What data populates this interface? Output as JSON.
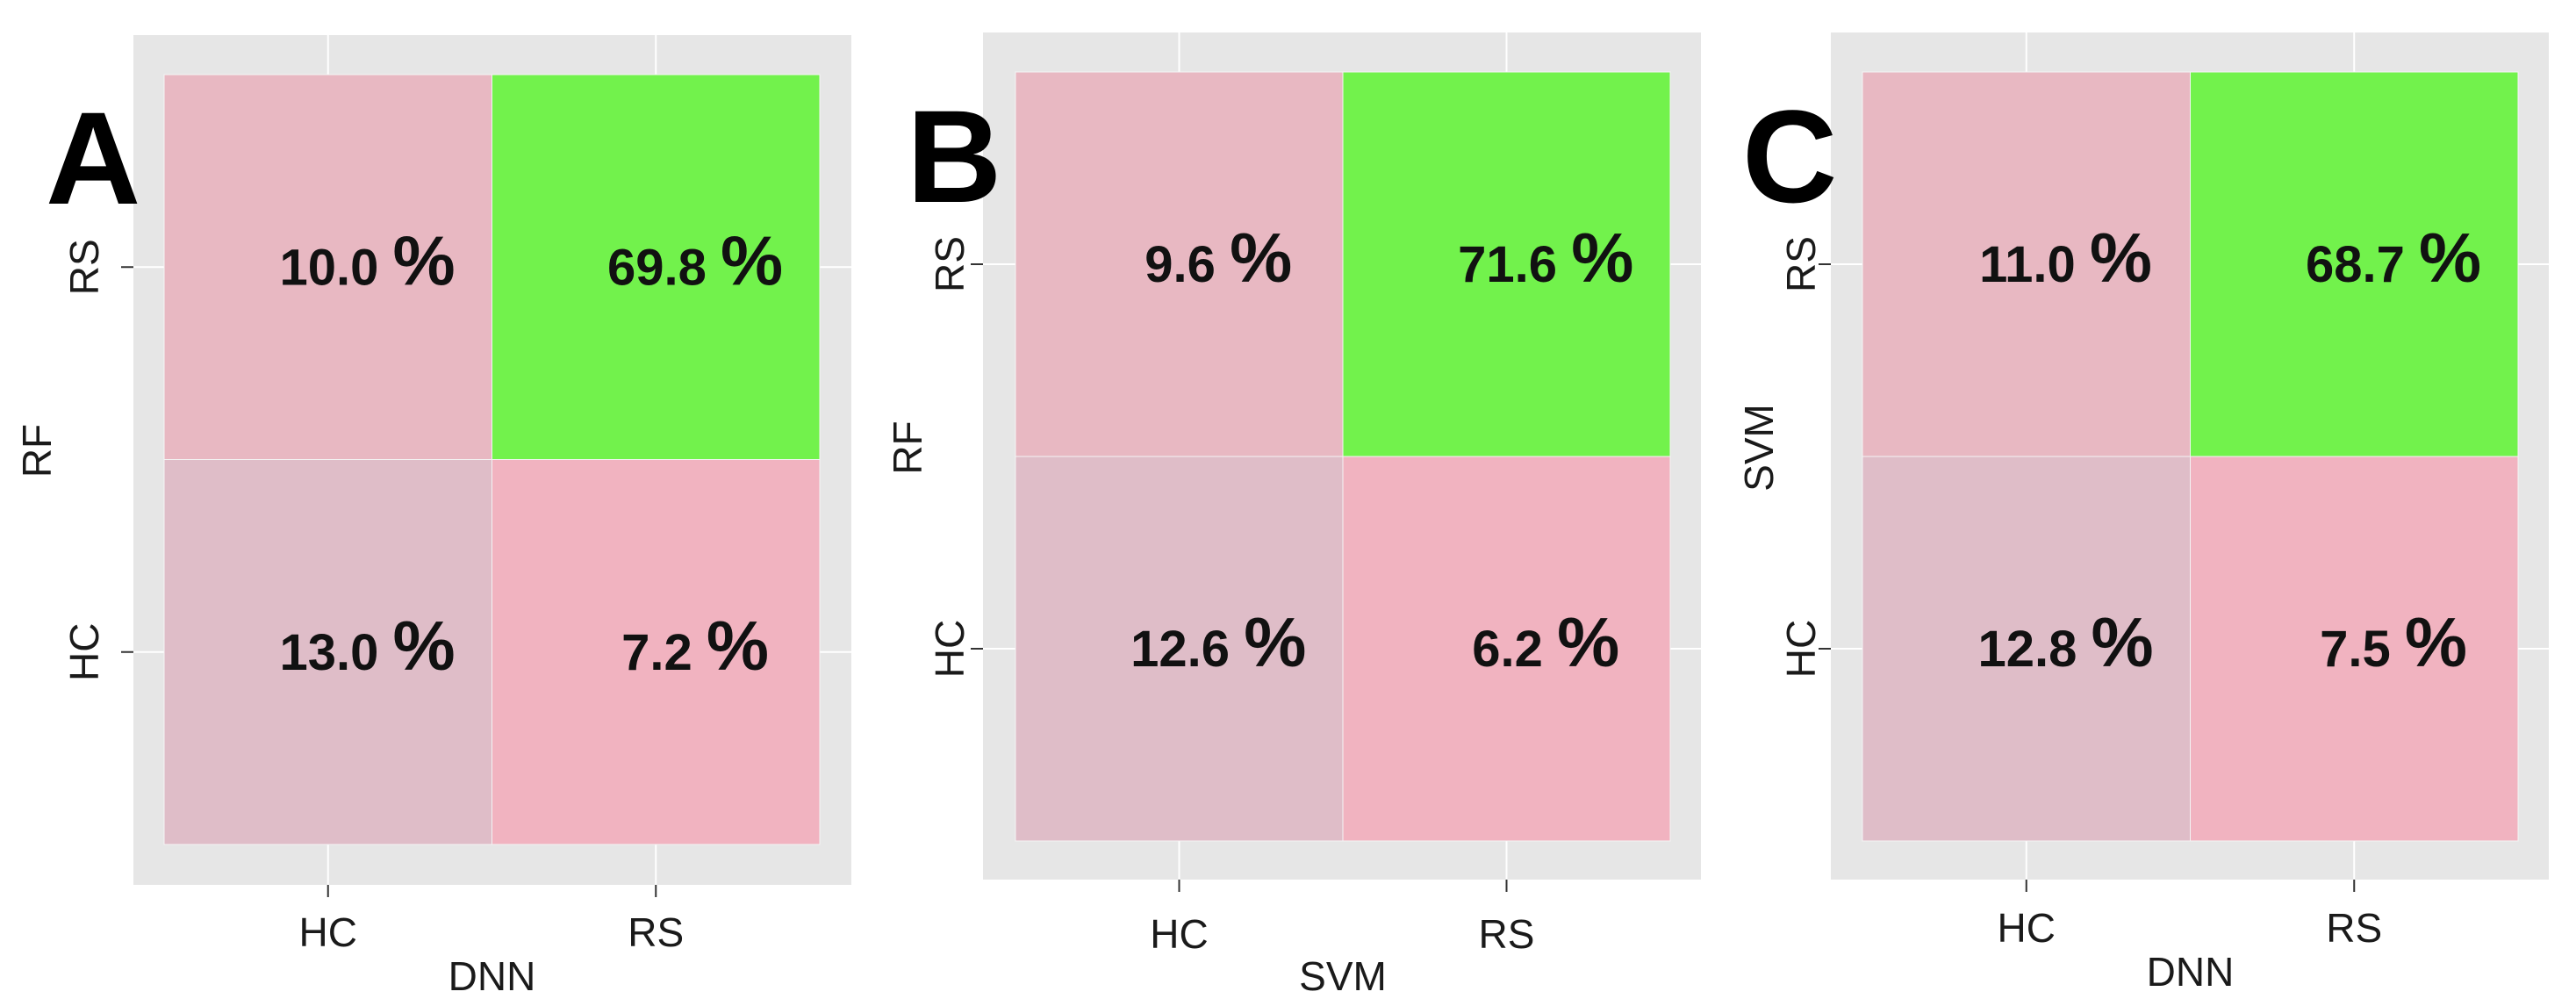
{
  "colors": {
    "panel_bg": "#e6e6e6",
    "grid": "#ffffff",
    "correct_cell": "#72f24c",
    "hc_hc_cell": "#dfbdc8",
    "rs_hc_cell": "#e8b8c2",
    "hc_rs_cell": "#f1b3c0",
    "tick": "#333333"
  },
  "chart_data": [
    {
      "type": "heatmap",
      "panel_label": "A",
      "xlabel": "DNN",
      "ylabel": "RF",
      "x_categories": [
        "HC",
        "RS"
      ],
      "y_categories": [
        "HC",
        "RS"
      ],
      "cells": [
        {
          "x": "HC",
          "y": "RS",
          "value": 10.0,
          "label": "10.0",
          "unit": "%"
        },
        {
          "x": "RS",
          "y": "RS",
          "value": 69.8,
          "label": "69.8",
          "unit": "%"
        },
        {
          "x": "HC",
          "y": "HC",
          "value": 13.0,
          "label": "13.0",
          "unit": "%"
        },
        {
          "x": "RS",
          "y": "HC",
          "value": 7.2,
          "label": "7.2",
          "unit": "%"
        }
      ]
    },
    {
      "type": "heatmap",
      "panel_label": "B",
      "xlabel": "SVM",
      "ylabel": "RF",
      "x_categories": [
        "HC",
        "RS"
      ],
      "y_categories": [
        "HC",
        "RS"
      ],
      "cells": [
        {
          "x": "HC",
          "y": "RS",
          "value": 9.6,
          "label": "9.6",
          "unit": "%"
        },
        {
          "x": "RS",
          "y": "RS",
          "value": 71.6,
          "label": "71.6",
          "unit": "%"
        },
        {
          "x": "HC",
          "y": "HC",
          "value": 12.6,
          "label": "12.6",
          "unit": "%"
        },
        {
          "x": "RS",
          "y": "HC",
          "value": 6.2,
          "label": "6.2",
          "unit": "%"
        }
      ]
    },
    {
      "type": "heatmap",
      "panel_label": "C",
      "xlabel": "DNN",
      "ylabel": "SVM",
      "x_categories": [
        "HC",
        "RS"
      ],
      "y_categories": [
        "HC",
        "RS"
      ],
      "cells": [
        {
          "x": "HC",
          "y": "RS",
          "value": 11.0,
          "label": "11.0",
          "unit": "%"
        },
        {
          "x": "RS",
          "y": "RS",
          "value": 68.7,
          "label": "68.7",
          "unit": "%"
        },
        {
          "x": "HC",
          "y": "HC",
          "value": 12.8,
          "label": "12.8",
          "unit": "%"
        },
        {
          "x": "RS",
          "y": "HC",
          "value": 7.5,
          "label": "7.5",
          "unit": "%"
        }
      ]
    }
  ]
}
